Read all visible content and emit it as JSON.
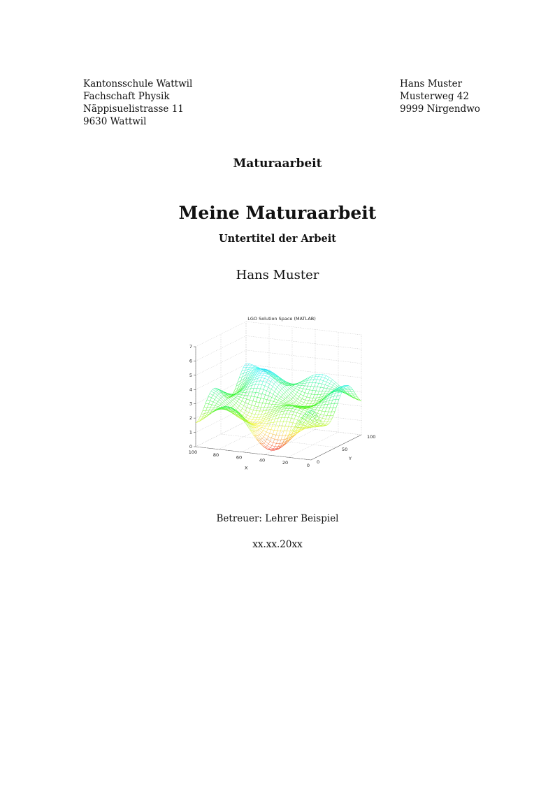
{
  "header": {
    "school": [
      "Kantonsschule Wattwil",
      "Fachschaft Physik",
      "Näppisuelistrasse 11",
      "9630 Wattwil"
    ],
    "author_address": [
      "Hans Muster",
      "Musterweg 42",
      "9999 Nirgendwo"
    ]
  },
  "document_type": "Maturaarbeit",
  "title": "Meine Maturaarbeit",
  "subtitle": "Untertitel der Arbeit",
  "author": "Hans Muster",
  "figure": {
    "title": "LGO Solution Space (MATLAB)",
    "z_ticks": [
      0,
      1,
      2,
      3,
      4,
      5,
      6,
      7
    ],
    "x_ticks": [
      100,
      80,
      60,
      40,
      20,
      0
    ],
    "y_ticks": [
      0,
      50,
      100
    ],
    "x_label": "X",
    "y_label": "Y"
  },
  "supervisor": "Betreuer: Lehrer Beispiel",
  "date": "xx.xx.20xx"
}
